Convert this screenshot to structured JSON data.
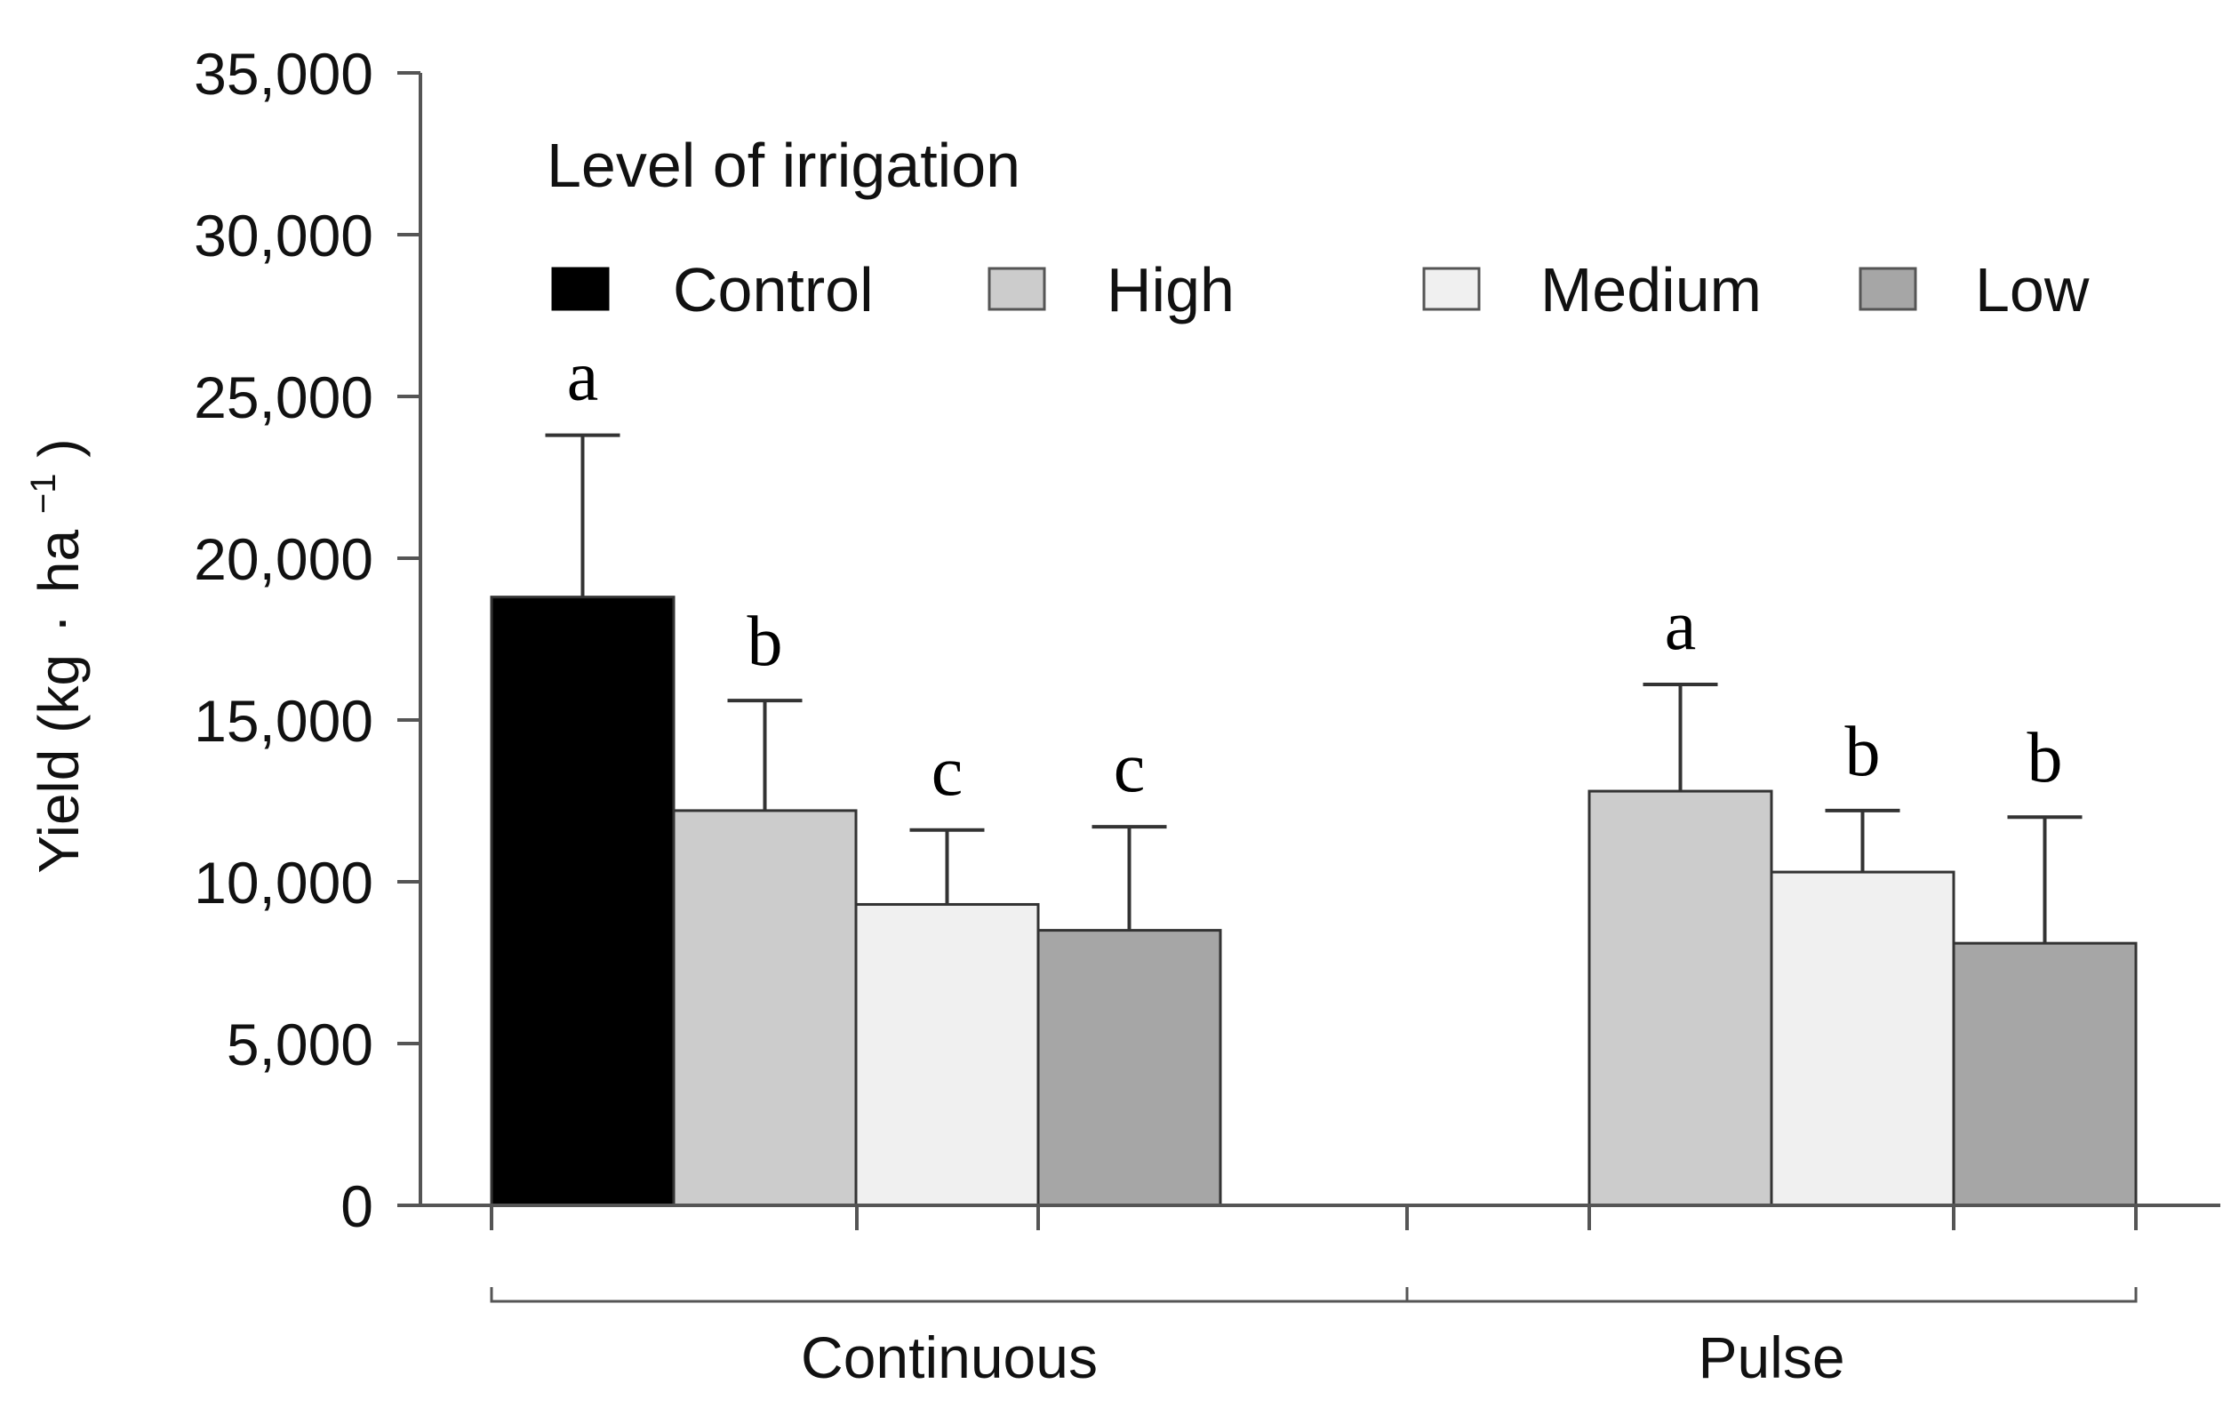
{
  "chart_data": {
    "type": "bar",
    "ylabel_main": "Yield (kg",
    "ylabel_dot": "·",
    "ylabel_unit": "ha",
    "ylabel_sup": "−1",
    "ylabel_close": ")",
    "ylim": [
      0,
      35000
    ],
    "yticks": [
      {
        "value": 0,
        "label": "0"
      },
      {
        "value": 5000,
        "label": "5,000"
      },
      {
        "value": 10000,
        "label": "10,000"
      },
      {
        "value": 15000,
        "label": "15,000"
      },
      {
        "value": 20000,
        "label": "20,000"
      },
      {
        "value": 25000,
        "label": "25,000"
      },
      {
        "value": 30000,
        "label": "30,000"
      },
      {
        "value": 35000,
        "label": "35,000"
      }
    ],
    "legend": {
      "title": "Level of irrigation",
      "position": "top-right",
      "entries": [
        {
          "name": "Control",
          "color": "#000000"
        },
        {
          "name": "High",
          "color": "#cccccc"
        },
        {
          "name": "Medium",
          "color": "#f0f0f0"
        },
        {
          "name": "Low",
          "color": "#a6a6a6"
        }
      ]
    },
    "groups": [
      {
        "label": "Continuous",
        "bars": [
          {
            "series": "Control",
            "value": 18800,
            "error": 5000,
            "letter": "a",
            "color": "#000000"
          },
          {
            "series": "High",
            "value": 12200,
            "error": 3400,
            "letter": "b",
            "color": "#cccccc"
          },
          {
            "series": "Medium",
            "value": 9300,
            "error": 2300,
            "letter": "c",
            "color": "#f0f0f0"
          },
          {
            "series": "Low",
            "value": 8500,
            "error": 3200,
            "letter": "c",
            "color": "#a6a6a6"
          }
        ]
      },
      {
        "label": "Pulse",
        "bars": [
          {
            "series": "High",
            "value": 12800,
            "error": 3300,
            "letter": "a",
            "color": "#cccccc"
          },
          {
            "series": "Medium",
            "value": 10300,
            "error": 1900,
            "letter": "b",
            "color": "#f0f0f0"
          },
          {
            "series": "Low",
            "value": 8100,
            "error": 3900,
            "letter": "b",
            "color": "#a6a6a6"
          }
        ]
      }
    ]
  }
}
